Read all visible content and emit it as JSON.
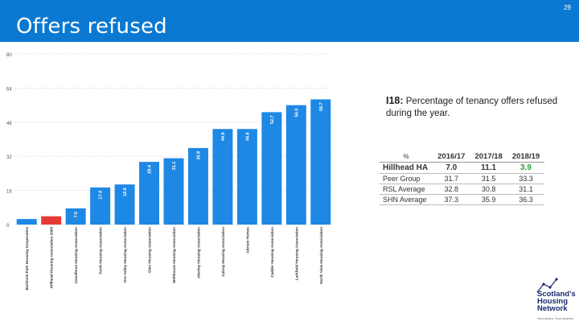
{
  "header": {
    "title": "Offers refused",
    "page_number": "29"
  },
  "metric": {
    "code": "I18:",
    "description": "Percentage of tenancy offers refused during the year."
  },
  "table": {
    "unit_header": "%",
    "years": [
      "2016/17",
      "2017/18",
      "2018/19"
    ],
    "rows": [
      {
        "label": "Hillhead HA",
        "values": [
          "7.0",
          "11.1",
          "3.9"
        ]
      },
      {
        "label": "Peer Group",
        "values": [
          "31.7",
          "31.5",
          "33.3"
        ]
      },
      {
        "label": "RSL Average",
        "values": [
          "32.8",
          "30.8",
          "31.1"
        ]
      },
      {
        "label": "SHN Average",
        "values": [
          "37.3",
          "35.9",
          "36.3"
        ]
      }
    ]
  },
  "logo": {
    "line1": "Scotland's",
    "line2": "Housing",
    "line3": "Network",
    "tagline": "Your sector, Your network"
  },
  "chart_data": {
    "type": "bar",
    "ylim": [
      0,
      80
    ],
    "yticks": [
      "0",
      "16",
      "32",
      "48",
      "64",
      "80"
    ],
    "grid": true,
    "categories": [
      "Barlinnie Park Housing Cooperative",
      "Hillhead Housing Association 2000",
      "Cassiltoun Housing Association",
      "Forth Housing Association",
      "Ore Valley Housing Association",
      "Glen Housing Association",
      "Wellhouse Housing Association",
      "Abertay Housing Association",
      "Calvay Housing Association",
      "Abrium Homes",
      "Cadder Housing Association",
      "Larkfield Housing Association",
      "North View Housing Association"
    ],
    "values": [
      2.6,
      3.9,
      7.6,
      17.4,
      18.8,
      29.4,
      31.1,
      35.9,
      44.8,
      44.8,
      52.7,
      56.0,
      58.7
    ],
    "labels": [
      "",
      "",
      "7.6",
      "17.4",
      "18.8",
      "29.4",
      "31.1",
      "35.9",
      "44.8",
      "44.8",
      "52.7",
      "56.0",
      "58.7"
    ],
    "highlight_index": 1,
    "bar_color": "#1e88e5",
    "highlight_color": "#e53935"
  }
}
